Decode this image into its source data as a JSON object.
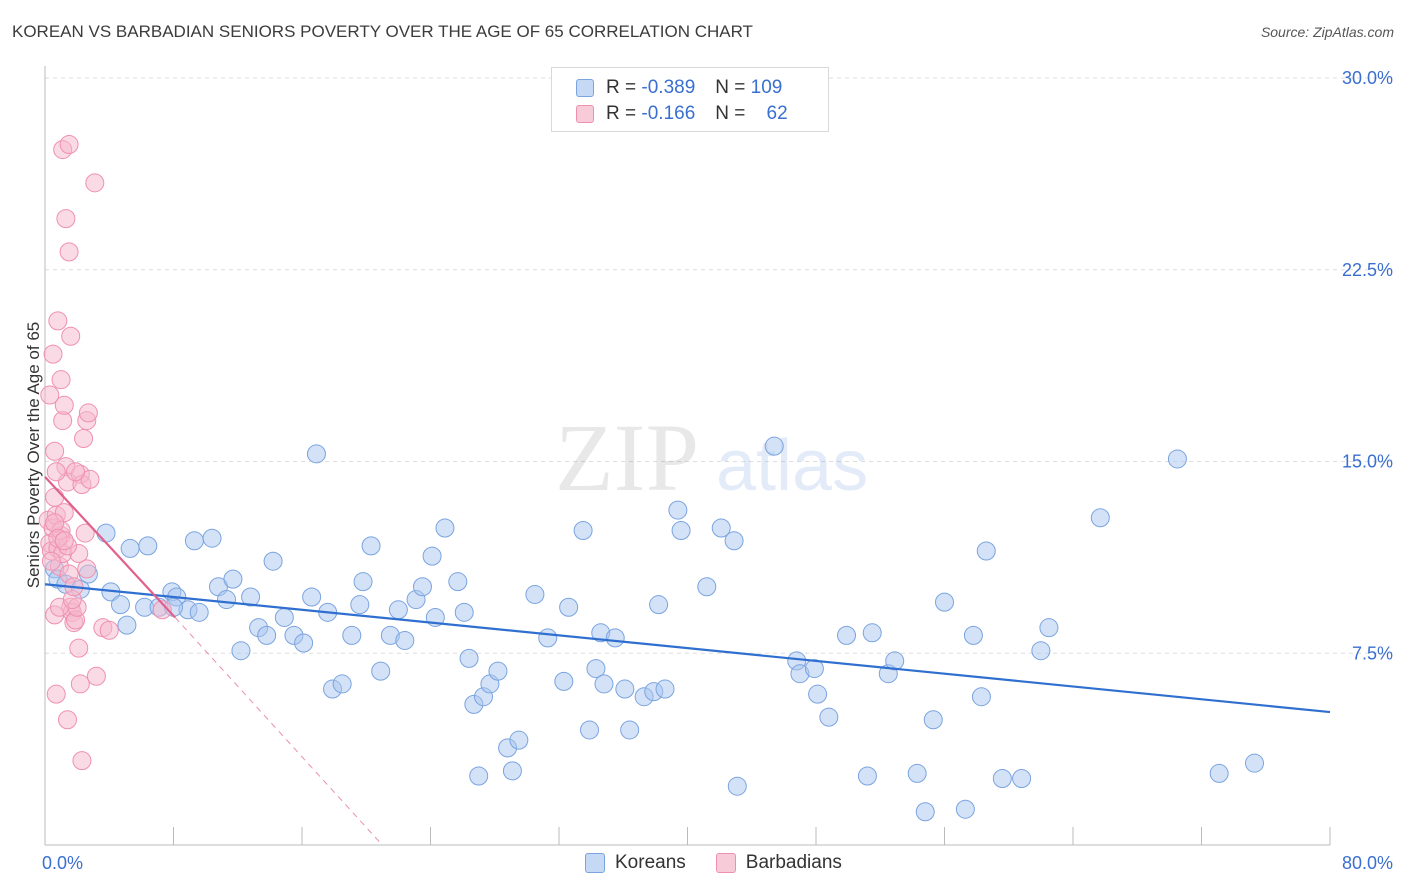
{
  "header": {
    "title": "KOREAN VS BARBADIAN SENIORS POVERTY OVER THE AGE OF 65 CORRELATION CHART",
    "source": "Source: ZipAtlas.com"
  },
  "legend": {
    "rows": [
      {
        "r_label": "R =",
        "r_value": "-0.389",
        "n_label": "N =",
        "n_value": "109"
      },
      {
        "r_label": "R =",
        "r_value": "-0.166",
        "n_label": "N =",
        "n_value": "62"
      }
    ]
  },
  "bottom_legend": {
    "koreans": "Koreans",
    "barbadians": "Barbadians"
  },
  "watermark": {
    "zip": "ZIP",
    "atlas": "atlas"
  },
  "chart_data": {
    "type": "scatter",
    "title": "KOREAN VS BARBADIAN SENIORS POVERTY OVER THE AGE OF 65 CORRELATION CHART",
    "xlabel": "",
    "ylabel": "Seniors Poverty Over the Age of 65",
    "xlim": [
      0,
      80
    ],
    "ylim": [
      0,
      30
    ],
    "x_tick_labels": [
      "0.0%",
      "80.0%"
    ],
    "y_ticks": [
      7.5,
      15.0,
      22.5,
      30.0
    ],
    "y_tick_labels": [
      "7.5%",
      "15.0%",
      "22.5%",
      "30.0%"
    ],
    "grid": true,
    "legend_position": "top-center",
    "series": [
      {
        "name": "Koreans",
        "color": "#a9c6f0",
        "stroke": "#7aa4e0",
        "line_color": "#2f6fd0",
        "trend": {
          "x": [
            0,
            80
          ],
          "y": [
            10.2,
            5.2
          ]
        },
        "points": [
          [
            0.6,
            10.8
          ],
          [
            0.8,
            10.4
          ],
          [
            1.3,
            10.2
          ],
          [
            2.2,
            10.0
          ],
          [
            2.7,
            10.6
          ],
          [
            3.8,
            12.2
          ],
          [
            4.1,
            9.9
          ],
          [
            4.7,
            9.4
          ],
          [
            5.3,
            11.6
          ],
          [
            6.2,
            9.3
          ],
          [
            6.4,
            11.7
          ],
          [
            7.1,
            9.3
          ],
          [
            7.9,
            9.9
          ],
          [
            8.2,
            9.7
          ],
          [
            8.9,
            9.2
          ],
          [
            9.6,
            9.1
          ],
          [
            9.3,
            11.9
          ],
          [
            10.4,
            12.0
          ],
          [
            10.8,
            10.1
          ],
          [
            11.3,
            9.6
          ],
          [
            11.7,
            10.4
          ],
          [
            12.2,
            7.6
          ],
          [
            12.8,
            9.7
          ],
          [
            13.3,
            8.5
          ],
          [
            13.8,
            8.2
          ],
          [
            14.2,
            11.1
          ],
          [
            14.9,
            8.9
          ],
          [
            15.5,
            8.2
          ],
          [
            16.1,
            7.9
          ],
          [
            16.6,
            9.7
          ],
          [
            16.9,
            15.3
          ],
          [
            17.6,
            9.1
          ],
          [
            17.9,
            6.1
          ],
          [
            18.5,
            6.3
          ],
          [
            19.1,
            8.2
          ],
          [
            19.6,
            9.4
          ],
          [
            19.8,
            10.3
          ],
          [
            20.3,
            11.7
          ],
          [
            20.9,
            6.8
          ],
          [
            21.5,
            8.2
          ],
          [
            22.0,
            9.2
          ],
          [
            22.4,
            8.0
          ],
          [
            23.1,
            9.6
          ],
          [
            23.5,
            10.1
          ],
          [
            24.1,
            11.3
          ],
          [
            24.3,
            8.9
          ],
          [
            24.9,
            12.4
          ],
          [
            25.7,
            10.3
          ],
          [
            26.1,
            9.1
          ],
          [
            26.4,
            7.3
          ],
          [
            26.7,
            5.5
          ],
          [
            27.3,
            5.8
          ],
          [
            27.7,
            6.3
          ],
          [
            28.2,
            6.8
          ],
          [
            28.8,
            3.8
          ],
          [
            29.5,
            4.1
          ],
          [
            30.5,
            9.8
          ],
          [
            31.3,
            8.1
          ],
          [
            32.3,
            6.4
          ],
          [
            32.6,
            9.3
          ],
          [
            33.5,
            12.3
          ],
          [
            33.9,
            4.5
          ],
          [
            34.3,
            6.9
          ],
          [
            34.6,
            8.3
          ],
          [
            35.5,
            8.1
          ],
          [
            36.1,
            6.1
          ],
          [
            36.4,
            4.5
          ],
          [
            37.3,
            5.8
          ],
          [
            37.9,
            6.0
          ],
          [
            38.6,
            6.1
          ],
          [
            38.2,
            9.4
          ],
          [
            39.4,
            13.1
          ],
          [
            39.6,
            12.3
          ],
          [
            41.2,
            10.1
          ],
          [
            42.1,
            12.4
          ],
          [
            42.9,
            11.9
          ],
          [
            45.4,
            15.6
          ],
          [
            46.8,
            7.2
          ],
          [
            47.0,
            6.7
          ],
          [
            47.9,
            6.9
          ],
          [
            48.1,
            5.9
          ],
          [
            48.8,
            5.0
          ],
          [
            49.9,
            8.2
          ],
          [
            51.2,
            2.7
          ],
          [
            51.5,
            8.3
          ],
          [
            52.5,
            6.7
          ],
          [
            52.9,
            7.2
          ],
          [
            54.3,
            2.8
          ],
          [
            54.8,
            1.3
          ],
          [
            55.3,
            4.9
          ],
          [
            56.0,
            9.5
          ],
          [
            57.3,
            1.4
          ],
          [
            57.8,
            8.2
          ],
          [
            58.3,
            5.8
          ],
          [
            58.6,
            11.5
          ],
          [
            59.6,
            2.6
          ],
          [
            60.8,
            2.6
          ],
          [
            62.0,
            7.6
          ],
          [
            62.5,
            8.5
          ],
          [
            65.7,
            12.8
          ],
          [
            70.5,
            15.1
          ],
          [
            73.1,
            2.8
          ],
          [
            75.3,
            3.2
          ],
          [
            8.0,
            9.3
          ],
          [
            5.1,
            8.6
          ],
          [
            27.0,
            2.7
          ],
          [
            29.1,
            2.9
          ],
          [
            34.8,
            6.3
          ],
          [
            43.1,
            2.3
          ]
        ]
      },
      {
        "name": "Barbadians",
        "color": "#f5b8cb",
        "stroke": "#ef90b0",
        "line_color": "#e0608e",
        "trend": {
          "x": [
            0,
            8.1
          ],
          "y": [
            14.4,
            8.9
          ]
        },
        "trend_extension": {
          "x": [
            8.1,
            21.0
          ],
          "y": [
            8.9,
            0.0
          ]
        },
        "points": [
          [
            0.2,
            12.7
          ],
          [
            0.3,
            11.8
          ],
          [
            0.4,
            11.5
          ],
          [
            0.5,
            12.4
          ],
          [
            0.6,
            13.6
          ],
          [
            0.7,
            12.9
          ],
          [
            0.8,
            11.6
          ],
          [
            0.9,
            10.9
          ],
          [
            1.0,
            12.1
          ],
          [
            1.1,
            11.4
          ],
          [
            0.3,
            17.6
          ],
          [
            0.5,
            19.2
          ],
          [
            0.8,
            20.5
          ],
          [
            1.0,
            18.2
          ],
          [
            1.1,
            16.6
          ],
          [
            1.2,
            17.2
          ],
          [
            1.3,
            14.8
          ],
          [
            1.4,
            14.2
          ],
          [
            0.6,
            15.4
          ],
          [
            0.7,
            14.6
          ],
          [
            1.5,
            10.6
          ],
          [
            1.6,
            9.3
          ],
          [
            1.7,
            9.1
          ],
          [
            1.8,
            8.7
          ],
          [
            1.9,
            8.8
          ],
          [
            2.0,
            9.3
          ],
          [
            2.1,
            11.4
          ],
          [
            2.2,
            14.5
          ],
          [
            2.3,
            14.1
          ],
          [
            2.4,
            15.9
          ],
          [
            2.5,
            12.2
          ],
          [
            2.6,
            16.6
          ],
          [
            2.7,
            16.9
          ],
          [
            2.8,
            14.3
          ],
          [
            0.6,
            9.0
          ],
          [
            0.7,
            5.9
          ],
          [
            1.4,
            4.9
          ],
          [
            2.1,
            7.7
          ],
          [
            2.2,
            6.3
          ],
          [
            2.3,
            3.3
          ],
          [
            3.2,
            6.6
          ],
          [
            3.6,
            8.5
          ],
          [
            4.0,
            8.4
          ],
          [
            1.1,
            27.2
          ],
          [
            1.5,
            27.4
          ],
          [
            3.1,
            25.9
          ],
          [
            1.3,
            24.5
          ],
          [
            1.5,
            23.2
          ],
          [
            1.6,
            19.9
          ],
          [
            1.9,
            14.6
          ],
          [
            1.2,
            13.0
          ],
          [
            1.0,
            12.3
          ],
          [
            1.4,
            11.7
          ],
          [
            0.9,
            9.3
          ],
          [
            1.7,
            9.6
          ],
          [
            2.6,
            10.8
          ],
          [
            1.8,
            10.1
          ],
          [
            0.4,
            11.1
          ],
          [
            0.6,
            12.6
          ],
          [
            0.8,
            12.0
          ],
          [
            7.3,
            9.2
          ],
          [
            1.2,
            11.9
          ]
        ]
      }
    ]
  }
}
